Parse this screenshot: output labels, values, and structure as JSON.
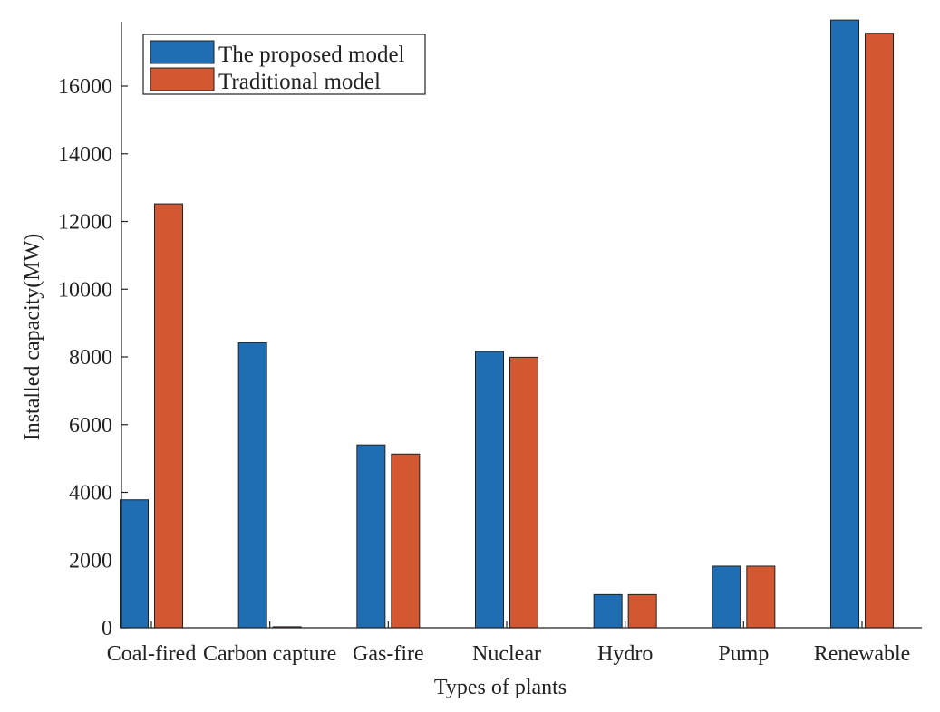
{
  "chart_data": {
    "type": "bar",
    "title": "",
    "xlabel": "Types of plants",
    "ylabel": "Installed capacity(MW)",
    "categories": [
      "Coal-fired",
      "Carbon capture",
      "Gas-fire",
      "Nuclear",
      "Hydro",
      "Pump",
      "Renewable"
    ],
    "series": [
      {
        "name": "The proposed model",
        "color": "#1f6eb4",
        "values": [
          3780,
          8420,
          5400,
          8160,
          980,
          1820,
          17950
        ]
      },
      {
        "name": "Traditional model",
        "color": "#d35832",
        "values": [
          12520,
          30,
          5130,
          7990,
          980,
          1820,
          17560
        ]
      }
    ],
    "ylim": [
      0,
      17900
    ],
    "yticks": [
      0,
      2000,
      4000,
      6000,
      8000,
      10000,
      12000,
      14000,
      16000
    ],
    "legend_position": "top-left",
    "grid": false
  }
}
